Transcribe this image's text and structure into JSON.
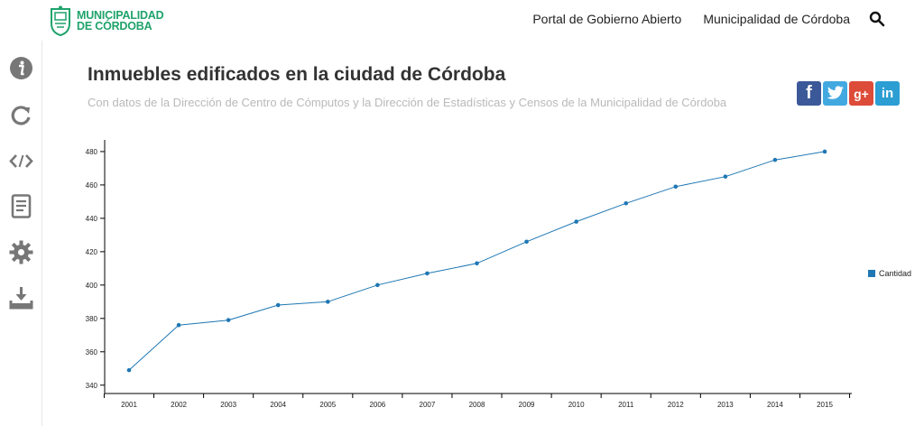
{
  "header": {
    "logo_line1": "MUNICIPALIDAD",
    "logo_line2": "DE CÓRDOBA",
    "nav": [
      "Portal de Gobierno Abierto",
      "Municipalidad de Córdoba"
    ]
  },
  "page": {
    "title": "Inmuebles edificados en la ciudad de Córdoba",
    "subtitle": "Con datos de la Dirección de Centro de Cómputos y la Dirección de Estadísticas y Censos de la Municipalidad de Córdoba"
  },
  "sidebar": {
    "icons": [
      "info-icon",
      "refresh-icon",
      "embed-code-icon",
      "document-icon",
      "gear-icon",
      "download-icon"
    ]
  },
  "social": {
    "icons": [
      "facebook-icon",
      "twitter-icon",
      "google-plus-icon",
      "linkedin-icon"
    ],
    "gplus_text": "g+",
    "linkedin_text": "in",
    "facebook_text": "f"
  },
  "colors": {
    "brand_green": "#1fa36b",
    "series": "#1f77b4"
  },
  "chart_data": {
    "type": "line",
    "x": [
      "2001",
      "2002",
      "2003",
      "2004",
      "2005",
      "2006",
      "2007",
      "2008",
      "2009",
      "2010",
      "2011",
      "2012",
      "2013",
      "2014",
      "2015"
    ],
    "series": [
      {
        "name": "Cantidad",
        "values": [
          349,
          376,
          379,
          388,
          390,
          400,
          407,
          413,
          426,
          438,
          449,
          459,
          465,
          475,
          480
        ]
      }
    ],
    "ylim": [
      335,
      487
    ],
    "yticks": [
      340,
      360,
      380,
      400,
      420,
      440,
      460,
      480
    ],
    "legend_position": "right",
    "grid": false
  }
}
